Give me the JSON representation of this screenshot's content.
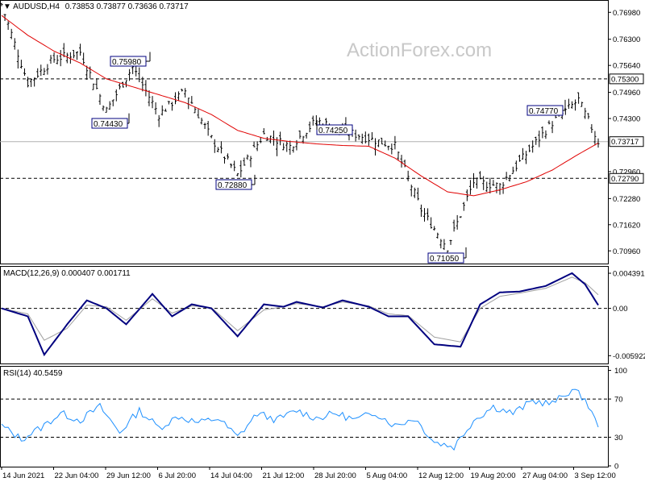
{
  "colors": {
    "candle": "#000000",
    "ma": "#e00000",
    "macd_line": "#00007f",
    "macd_signal": "#a0a0a0",
    "rsi_line": "#1e90ff",
    "frame": "#000000",
    "dashed": "#000000",
    "price_box_bg": "#ffffff"
  },
  "header": {
    "symbol": "AUDUSD,H4",
    "ohlc": "0.73853 0.73877 0.73636 0.73717"
  },
  "watermark": "ActionForex.com",
  "macd_title": "MACD(12,26,9) 0.000407 0.001711",
  "rsi_title": "RSI(14) 40.5459",
  "price_axis": {
    "ylim": [
      0.7066,
      0.7725
    ],
    "ticks": [
      "0.76980",
      "0.76300",
      "0.75640",
      "0.74960",
      "0.74300",
      "0.72960",
      "0.72280",
      "0.71620",
      "0.70960"
    ]
  },
  "horizontal_levels": [
    {
      "value": "0.75300",
      "style": "dashed"
    },
    {
      "value": "0.73717",
      "style": "solid-gray"
    },
    {
      "value": "0.72790",
      "style": "dashed"
    }
  ],
  "current_price": "0.73717",
  "macd_axis": {
    "ylim": [
      -0.0068,
      0.0051
    ],
    "ticks": [
      {
        "value": 0.004391,
        "label": "0.004391"
      },
      {
        "value": 0,
        "label": "0.00"
      },
      {
        "value": -0.005922,
        "label": "-0.005922"
      }
    ]
  },
  "rsi_axis": {
    "ylim": [
      0,
      103
    ],
    "ticks": [
      "100",
      "70",
      "30",
      "0"
    ]
  },
  "x_axis": {
    "labels": [
      "14 Jun 2021",
      "22 Jun 04:00",
      "29 Jun 12:00",
      "6 Jul 20:00",
      "14 Jul 04:00",
      "21 Jul 12:00",
      "28 Jul 20:00",
      "5 Aug 04:00",
      "12 Aug 12:00",
      "19 Aug 20:00",
      "27 Aug 04:00",
      "3 Sep 12:00"
    ]
  },
  "annotations": [
    {
      "text": "0.75980",
      "value": 0.7598
    },
    {
      "text": "0.74430",
      "value": 0.7443
    },
    {
      "text": "0.72880",
      "value": 0.7288
    },
    {
      "text": "0.74250",
      "value": 0.7425
    },
    {
      "text": "0.71050",
      "value": 0.7105
    },
    {
      "text": "0.74770",
      "value": 0.7477
    }
  ],
  "chart_data": {
    "type": "line",
    "price": {
      "x_index": [
        0,
        8,
        16,
        24,
        32,
        40,
        48,
        56,
        64,
        72,
        80,
        88,
        96,
        104,
        112,
        120,
        128,
        136,
        144,
        152,
        160,
        168,
        176,
        182
      ],
      "close": [
        0.7718,
        0.752,
        0.758,
        0.7598,
        0.745,
        0.756,
        0.744,
        0.75,
        0.738,
        0.7288,
        0.739,
        0.736,
        0.7425,
        0.74,
        0.738,
        0.736,
        0.72,
        0.7105,
        0.727,
        0.726,
        0.734,
        0.742,
        0.7477,
        0.7372
      ],
      "ma": [
        0.769,
        0.764,
        0.76,
        0.757,
        0.753,
        0.751,
        0.749,
        0.747,
        0.744,
        0.74,
        0.738,
        0.7372,
        0.7366,
        0.7362,
        0.736,
        0.733,
        0.7285,
        0.7245,
        0.7235,
        0.725,
        0.727,
        0.73,
        0.734,
        0.7368
      ]
    },
    "macd": {
      "x_index": [
        0,
        8,
        13,
        20,
        26,
        32,
        38,
        46,
        52,
        58,
        64,
        72,
        80,
        86,
        90,
        98,
        104,
        112,
        118,
        124,
        132,
        140,
        146,
        152,
        158,
        166,
        174,
        178,
        182
      ],
      "main": [
        0.0,
        -0.001,
        -0.0058,
        -0.002,
        0.001,
        0.0,
        -0.002,
        0.0018,
        -0.001,
        0.0005,
        0.0,
        -0.0035,
        0.0005,
        0.0002,
        0.0008,
        0.0001,
        0.001,
        0.0002,
        -0.001,
        -0.001,
        -0.0045,
        -0.0048,
        0.0005,
        0.002,
        0.0021,
        0.0028,
        0.0044,
        0.003,
        0.0004
      ],
      "signal": [
        0.0,
        -0.0007,
        -0.004,
        -0.0025,
        0.0004,
        0.0002,
        -0.0015,
        0.0012,
        -0.0006,
        0.0003,
        0.0001,
        -0.0028,
        -0.0002,
        0.0002,
        0.0006,
        0.0002,
        0.0008,
        0.0003,
        -0.0007,
        -0.0009,
        -0.0036,
        -0.0042,
        0.0,
        0.0015,
        0.0019,
        0.0025,
        0.0039,
        0.0032,
        0.0017
      ]
    },
    "rsi": {
      "x_index": [
        0,
        6,
        12,
        18,
        24,
        30,
        36,
        42,
        48,
        54,
        60,
        66,
        72,
        78,
        84,
        90,
        96,
        102,
        108,
        114,
        120,
        126,
        132,
        138,
        144,
        150,
        156,
        162,
        168,
        174,
        178,
        182
      ],
      "values": [
        42,
        28,
        40,
        55,
        48,
        62,
        35,
        58,
        40,
        52,
        45,
        50,
        30,
        55,
        48,
        58,
        50,
        55,
        48,
        56,
        42,
        50,
        25,
        20,
        48,
        62,
        55,
        68,
        65,
        80,
        70,
        40.5459
      ]
    }
  }
}
